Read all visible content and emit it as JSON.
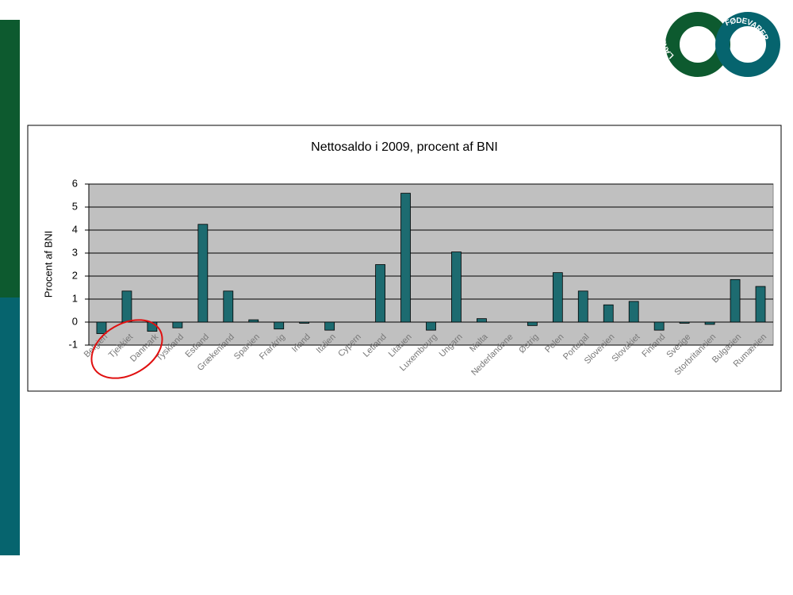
{
  "logo": {
    "left": "LANDBRUG",
    "right": "FØDEVARER"
  },
  "chart_data": {
    "type": "bar",
    "title": "Nettosaldo i 2009, procent af BNI",
    "y_label": "Procent af BNI",
    "categories": [
      "Belgien",
      "Tjekkiet",
      "Danmark",
      "Tyskland",
      "Estland",
      "Grækenland",
      "Spanien",
      "Frankrig",
      "Irland",
      "Italien",
      "Cypern",
      "Letland",
      "Litauen",
      "Luxembourg",
      "Ungarn",
      "Malta",
      "Nederlandene",
      "Østrig",
      "Polen",
      "Portugal",
      "Slovenien",
      "Slovakiet",
      "Finland",
      "Sverige",
      "Storbritannien",
      "Bulgarien",
      "Rumænien"
    ],
    "values": [
      -0.5,
      1.35,
      -0.4,
      -0.25,
      4.25,
      1.35,
      0.1,
      -0.3,
      -0.05,
      -0.35,
      0,
      2.5,
      5.6,
      -0.35,
      3.05,
      0.15,
      0,
      -0.15,
      2.15,
      1.35,
      0.75,
      0.9,
      -0.35,
      -0.05,
      -0.1,
      1.85,
      1.55
    ],
    "color": "#1d6b70",
    "ylim": [
      -1,
      6
    ],
    "yticks": [
      -1,
      0,
      1,
      2,
      3,
      4,
      5,
      6
    ],
    "grid": true
  }
}
